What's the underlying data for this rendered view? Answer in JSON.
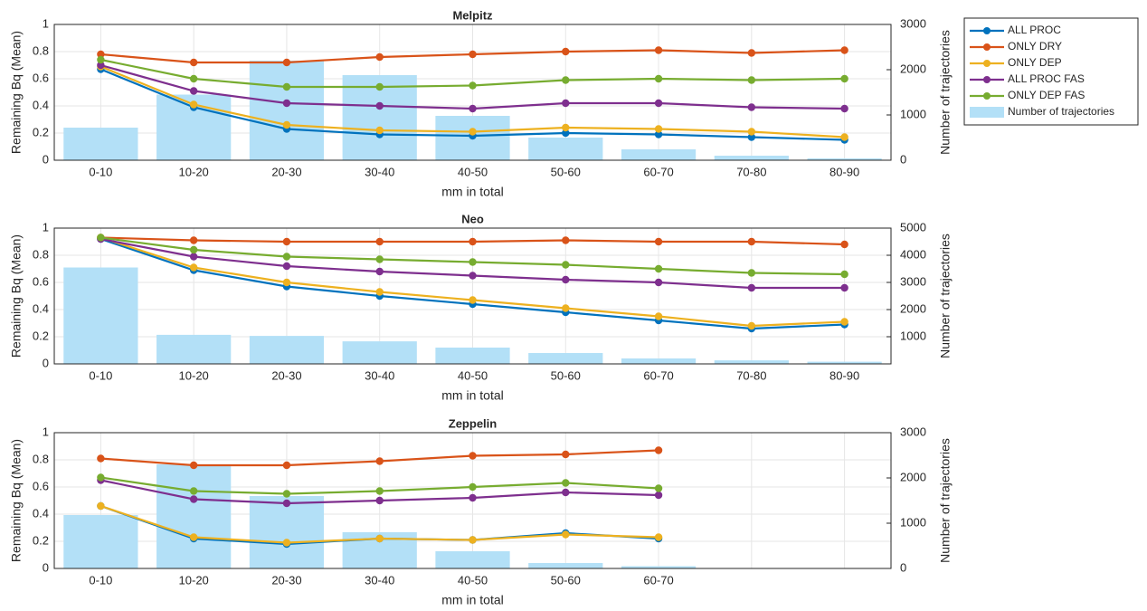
{
  "chart_data": [
    {
      "type": "combo",
      "title": "Melpitz",
      "xlabel": "mm in total",
      "ylabel": "Remaining Bq (Mean)",
      "y2label": "Number of trajectories",
      "categories": [
        "0-10",
        "10-20",
        "20-30",
        "30-40",
        "40-50",
        "50-60",
        "60-70",
        "70-80",
        "80-90"
      ],
      "ylim": [
        0,
        1
      ],
      "yticks": [
        0,
        0.2,
        0.4,
        0.6,
        0.8,
        1
      ],
      "y2lim": [
        0,
        3000
      ],
      "y2ticks": [
        0,
        1000,
        2000,
        3000
      ],
      "grid": true,
      "legend": "outside right",
      "series": [
        {
          "name": "ALL PROC",
          "color": "#0072BD",
          "values": [
            0.67,
            0.39,
            0.23,
            0.19,
            0.18,
            0.2,
            0.19,
            0.17,
            0.15
          ]
        },
        {
          "name": "ONLY DRY",
          "color": "#D95319",
          "values": [
            0.78,
            0.72,
            0.72,
            0.76,
            0.78,
            0.8,
            0.81,
            0.79,
            0.81
          ]
        },
        {
          "name": "ONLY DEP",
          "color": "#EDB120",
          "values": [
            0.69,
            0.41,
            0.26,
            0.22,
            0.21,
            0.24,
            0.23,
            0.21,
            0.17
          ]
        },
        {
          "name": "ALL PROC FAS",
          "color": "#7E2F8E",
          "values": [
            0.7,
            0.51,
            0.42,
            0.4,
            0.38,
            0.42,
            0.42,
            0.39,
            0.38
          ]
        },
        {
          "name": "ONLY DEP FAS",
          "color": "#77AC30",
          "values": [
            0.74,
            0.6,
            0.54,
            0.54,
            0.55,
            0.59,
            0.6,
            0.59,
            0.6
          ]
        },
        {
          "name": "Number of trajectories",
          "type": "bar",
          "axis": "y2",
          "color": "#b3e0f7",
          "values": [
            720,
            1450,
            2200,
            1880,
            980,
            500,
            240,
            100,
            40
          ]
        }
      ]
    },
    {
      "type": "combo",
      "title": "Neo",
      "xlabel": "mm in total",
      "ylabel": "Remaining Bq (Mean)",
      "y2label": "Number of trajectories",
      "categories": [
        "0-10",
        "10-20",
        "20-30",
        "30-40",
        "40-50",
        "50-60",
        "60-70",
        "70-80",
        "80-90"
      ],
      "ylim": [
        0,
        1
      ],
      "yticks": [
        0,
        0.2,
        0.4,
        0.6,
        0.8,
        1
      ],
      "y2lim": [
        0,
        5000
      ],
      "y2ticks": [
        1000,
        2000,
        3000,
        4000,
        5000
      ],
      "grid": true,
      "series": [
        {
          "name": "ALL PROC",
          "color": "#0072BD",
          "values": [
            0.92,
            0.69,
            0.57,
            0.5,
            0.44,
            0.38,
            0.32,
            0.26,
            0.29
          ]
        },
        {
          "name": "ONLY DRY",
          "color": "#D95319",
          "values": [
            0.93,
            0.91,
            0.9,
            0.9,
            0.9,
            0.91,
            0.9,
            0.9,
            0.88
          ]
        },
        {
          "name": "ONLY DEP",
          "color": "#EDB120",
          "values": [
            0.93,
            0.71,
            0.6,
            0.53,
            0.47,
            0.41,
            0.35,
            0.28,
            0.31
          ]
        },
        {
          "name": "ALL PROC FAS",
          "color": "#7E2F8E",
          "values": [
            0.92,
            0.79,
            0.72,
            0.68,
            0.65,
            0.62,
            0.6,
            0.56,
            0.56
          ]
        },
        {
          "name": "ONLY DEP FAS",
          "color": "#77AC30",
          "values": [
            0.93,
            0.84,
            0.79,
            0.77,
            0.75,
            0.73,
            0.7,
            0.67,
            0.66
          ]
        },
        {
          "name": "Number of trajectories",
          "type": "bar",
          "axis": "y2",
          "color": "#b3e0f7",
          "values": [
            3550,
            1070,
            1030,
            830,
            600,
            400,
            200,
            130,
            80
          ]
        }
      ]
    },
    {
      "type": "combo",
      "title": "Zeppelin",
      "xlabel": "mm in total",
      "ylabel": "Remaining Bq (Mean)",
      "y2label": "Number of trajectories",
      "categories": [
        "0-10",
        "10-20",
        "20-30",
        "30-40",
        "40-50",
        "50-60",
        "60-70",
        null,
        null
      ],
      "ylim": [
        0,
        1
      ],
      "yticks": [
        0,
        0.2,
        0.4,
        0.6,
        0.8,
        1
      ],
      "y2lim": [
        0,
        3000
      ],
      "y2ticks": [
        0,
        1000,
        2000,
        3000
      ],
      "grid": true,
      "series": [
        {
          "name": "ALL PROC",
          "color": "#0072BD",
          "values": [
            0.46,
            0.22,
            0.18,
            0.22,
            0.21,
            0.26,
            0.22,
            null,
            null
          ]
        },
        {
          "name": "ONLY DRY",
          "color": "#D95319",
          "values": [
            0.81,
            0.76,
            0.76,
            0.79,
            0.83,
            0.84,
            0.87,
            null,
            null
          ]
        },
        {
          "name": "ONLY DEP",
          "color": "#EDB120",
          "values": [
            0.46,
            0.23,
            0.19,
            0.22,
            0.21,
            0.25,
            0.23,
            null,
            null
          ]
        },
        {
          "name": "ALL PROC FAS",
          "color": "#7E2F8E",
          "values": [
            0.65,
            0.51,
            0.48,
            0.5,
            0.52,
            0.56,
            0.54,
            null,
            null
          ]
        },
        {
          "name": "ONLY DEP FAS",
          "color": "#77AC30",
          "values": [
            0.67,
            0.57,
            0.55,
            0.57,
            0.6,
            0.63,
            0.59,
            null,
            null
          ]
        },
        {
          "name": "Number of trajectories",
          "type": "bar",
          "axis": "y2",
          "color": "#b3e0f7",
          "values": [
            1180,
            2300,
            1600,
            800,
            380,
            120,
            50,
            null,
            null
          ]
        }
      ]
    }
  ]
}
